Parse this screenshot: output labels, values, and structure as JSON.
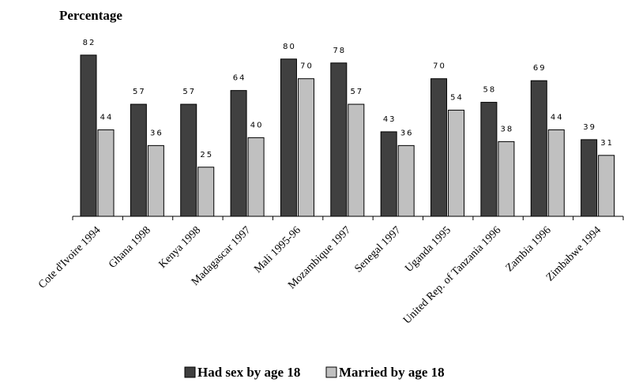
{
  "chart_data": {
    "type": "bar",
    "ylabel": "Percentage",
    "categories": [
      "Cote d'Ivoire 1994",
      "Ghana 1998",
      "Kenya 1998",
      "Madagascar 1997",
      "Mali 1995-96",
      "Mozambique 1997",
      "Senegal 1997",
      "Uganda 1995",
      "United Rep. of Tanzania 1996",
      "Zambia 1996",
      "Zimbabwe 1994"
    ],
    "series": [
      {
        "name": "Had sex by age 18",
        "color": "#404040",
        "values": [
          82,
          57,
          57,
          64,
          80,
          78,
          43,
          70,
          58,
          69,
          39
        ]
      },
      {
        "name": "Married by age 18",
        "color": "#c0c0c0",
        "values": [
          44,
          36,
          25,
          40,
          70,
          57,
          36,
          54,
          38,
          44,
          31
        ]
      }
    ],
    "ylim": [
      0,
      100
    ],
    "grid": false,
    "legend_position": "bottom-center",
    "show_data_labels": true
  }
}
